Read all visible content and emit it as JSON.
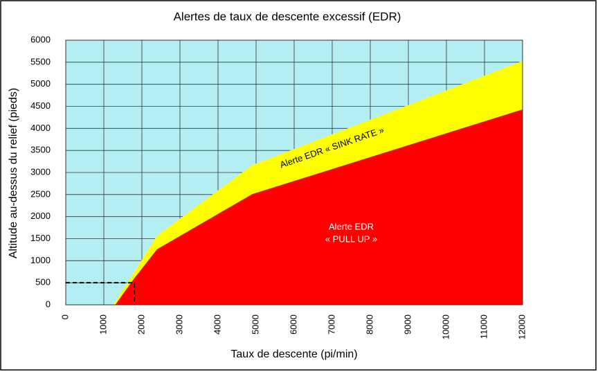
{
  "chart_data": {
    "type": "area",
    "title": "Alertes de taux de descente excessif (EDR)",
    "x_label": "Taux de descente (pi/min)",
    "y_label": "Altitude au-dessus du relief (pieds)",
    "xlim": [
      0,
      12000
    ],
    "ylim": [
      0,
      6000
    ],
    "xticks": [
      0,
      1000,
      2000,
      3000,
      4000,
      5000,
      6000,
      7000,
      8000,
      9000,
      10000,
      11000,
      12000
    ],
    "yticks": [
      0,
      500,
      1000,
      1500,
      2000,
      2500,
      3000,
      3500,
      4000,
      4500,
      5000,
      5500,
      6000
    ],
    "grid": true,
    "background": "#b2eef2",
    "series": [
      {
        "color": "#ffff00",
        "x": [
          1250,
          2400,
          4900,
          12000
        ],
        "values": [
          0,
          1570,
          3170,
          5530
        ]
      },
      {
        "color": "#ff0000",
        "x": [
          1300,
          1800,
          2400,
          4900,
          12000
        ],
        "values": [
          0,
          600,
          1260,
          2510,
          4430
        ]
      }
    ],
    "reference": {
      "x": 1800,
      "y": 500
    },
    "annotations": [
      {
        "lines": [
          "Alerte EDR « SINK RATE »"
        ],
        "x": 7000,
        "y": 3550,
        "angle": -19
      },
      {
        "lines": [
          "Alerte EDR",
          "« PULL UP »"
        ],
        "x": 7500,
        "y": 1750,
        "angle": 0
      }
    ]
  }
}
